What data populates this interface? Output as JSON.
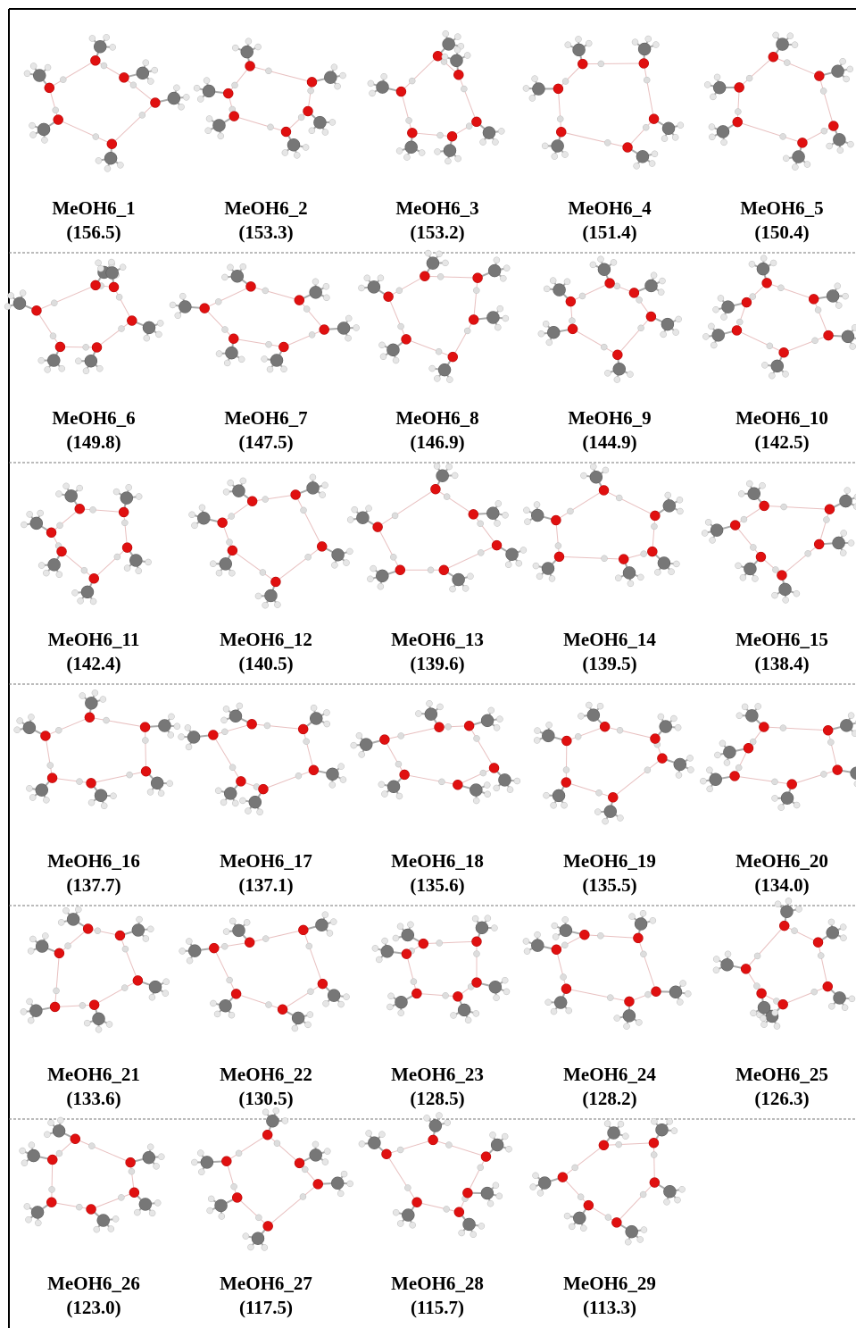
{
  "figure": {
    "items": [
      {
        "name": "MeOH6_1",
        "value": "(156.5)"
      },
      {
        "name": "MeOH6_2",
        "value": "(153.3)"
      },
      {
        "name": "MeOH6_3",
        "value": "(153.2)"
      },
      {
        "name": "MeOH6_4",
        "value": "(151.4)"
      },
      {
        "name": "MeOH6_5",
        "value": "(150.4)"
      },
      {
        "name": "MeOH6_6",
        "value": "(149.8)"
      },
      {
        "name": "MeOH6_7",
        "value": "(147.5)"
      },
      {
        "name": "MeOH6_8",
        "value": "(146.9)"
      },
      {
        "name": "MeOH6_9",
        "value": "(144.9)"
      },
      {
        "name": "MeOH6_10",
        "value": "(142.5)"
      },
      {
        "name": "MeOH6_11",
        "value": "(142.4)"
      },
      {
        "name": "MeOH6_12",
        "value": "(140.5)"
      },
      {
        "name": "MeOH6_13",
        "value": "(139.6)"
      },
      {
        "name": "MeOH6_14",
        "value": "(139.5)"
      },
      {
        "name": "MeOH6_15",
        "value": "(138.4)"
      },
      {
        "name": "MeOH6_16",
        "value": "(137.7)"
      },
      {
        "name": "MeOH6_17",
        "value": "(137.1)"
      },
      {
        "name": "MeOH6_18",
        "value": "(135.6)"
      },
      {
        "name": "MeOH6_19",
        "value": "(135.5)"
      },
      {
        "name": "MeOH6_20",
        "value": "(134.0)"
      },
      {
        "name": "MeOH6_21",
        "value": "(133.6)"
      },
      {
        "name": "MeOH6_22",
        "value": "(130.5)"
      },
      {
        "name": "MeOH6_23",
        "value": "(128.5)"
      },
      {
        "name": "MeOH6_24",
        "value": "(128.2)"
      },
      {
        "name": "MeOH6_25",
        "value": "(126.3)"
      },
      {
        "name": "MeOH6_26",
        "value": "(123.0)"
      },
      {
        "name": "MeOH6_27",
        "value": "(117.5)"
      },
      {
        "name": "MeOH6_28",
        "value": "(115.7)"
      },
      {
        "name": "MeOH6_29",
        "value": "(113.3)"
      }
    ]
  }
}
